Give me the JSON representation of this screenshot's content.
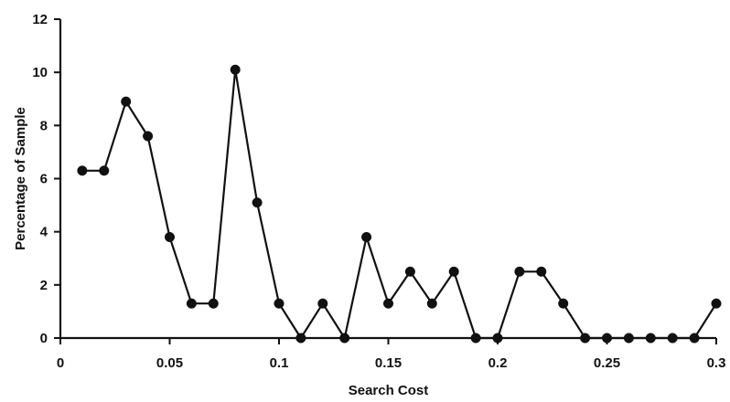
{
  "chart_data": {
    "type": "line",
    "title": "",
    "xlabel": "Search Cost",
    "ylabel": "Percentage of Sample",
    "xlim": [
      0,
      0.3
    ],
    "ylim": [
      0,
      12
    ],
    "grid": false,
    "legend": "none",
    "x_ticks": [
      0,
      0.05,
      0.1,
      0.15,
      0.2,
      0.25,
      0.3
    ],
    "x_tick_labels": [
      "0",
      "0.05",
      "0.1",
      "0.15",
      "0.2",
      "0.25",
      "0.3"
    ],
    "y_ticks": [
      0,
      2,
      4,
      6,
      8,
      10,
      12
    ],
    "y_tick_labels": [
      "0",
      "2",
      "4",
      "6",
      "8",
      "10",
      "12"
    ],
    "x": [
      0.01,
      0.02,
      0.03,
      0.04,
      0.05,
      0.06,
      0.07,
      0.08,
      0.09,
      0.1,
      0.11,
      0.12,
      0.13,
      0.14,
      0.15,
      0.16,
      0.17,
      0.18,
      0.19,
      0.2,
      0.21,
      0.22,
      0.23,
      0.24,
      0.25,
      0.26,
      0.27,
      0.28,
      0.29,
      0.3
    ],
    "series": [
      {
        "values": [
          6.3,
          6.3,
          8.9,
          7.6,
          3.8,
          1.3,
          1.3,
          10.1,
          5.1,
          1.3,
          0,
          1.3,
          0,
          3.8,
          1.3,
          2.5,
          1.3,
          2.5,
          0,
          0,
          2.5,
          2.5,
          1.3,
          0,
          0,
          0,
          0,
          0,
          0,
          1.3
        ],
        "color": "#111111"
      }
    ]
  }
}
